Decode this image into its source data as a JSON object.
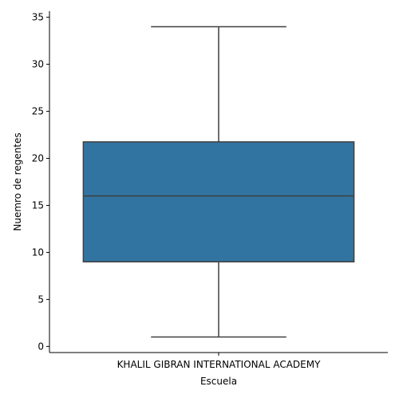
{
  "chart_data": {
    "type": "box",
    "xlabel": "Escuela",
    "ylabel": "Nuemro de regentes",
    "categories": [
      "KHALIL GIBRAN INTERNATIONAL ACADEMY"
    ],
    "boxes": [
      {
        "category": "KHALIL GIBRAN INTERNATIONAL ACADEMY",
        "whisker_low": 1,
        "q1": 9,
        "median": 16,
        "q3": 21.75,
        "whisker_high": 34
      }
    ],
    "ylim": [
      -0.65,
      35.65
    ],
    "yticks": [
      0,
      5,
      10,
      15,
      20,
      25,
      30,
      35
    ],
    "ytick_labels": [
      "0",
      "5",
      "10",
      "15",
      "20",
      "25",
      "30",
      "35"
    ],
    "grid": false,
    "colors": {
      "box_fill": "#3274a1",
      "lines": "#3f3f3f",
      "axes": "#000000"
    }
  }
}
